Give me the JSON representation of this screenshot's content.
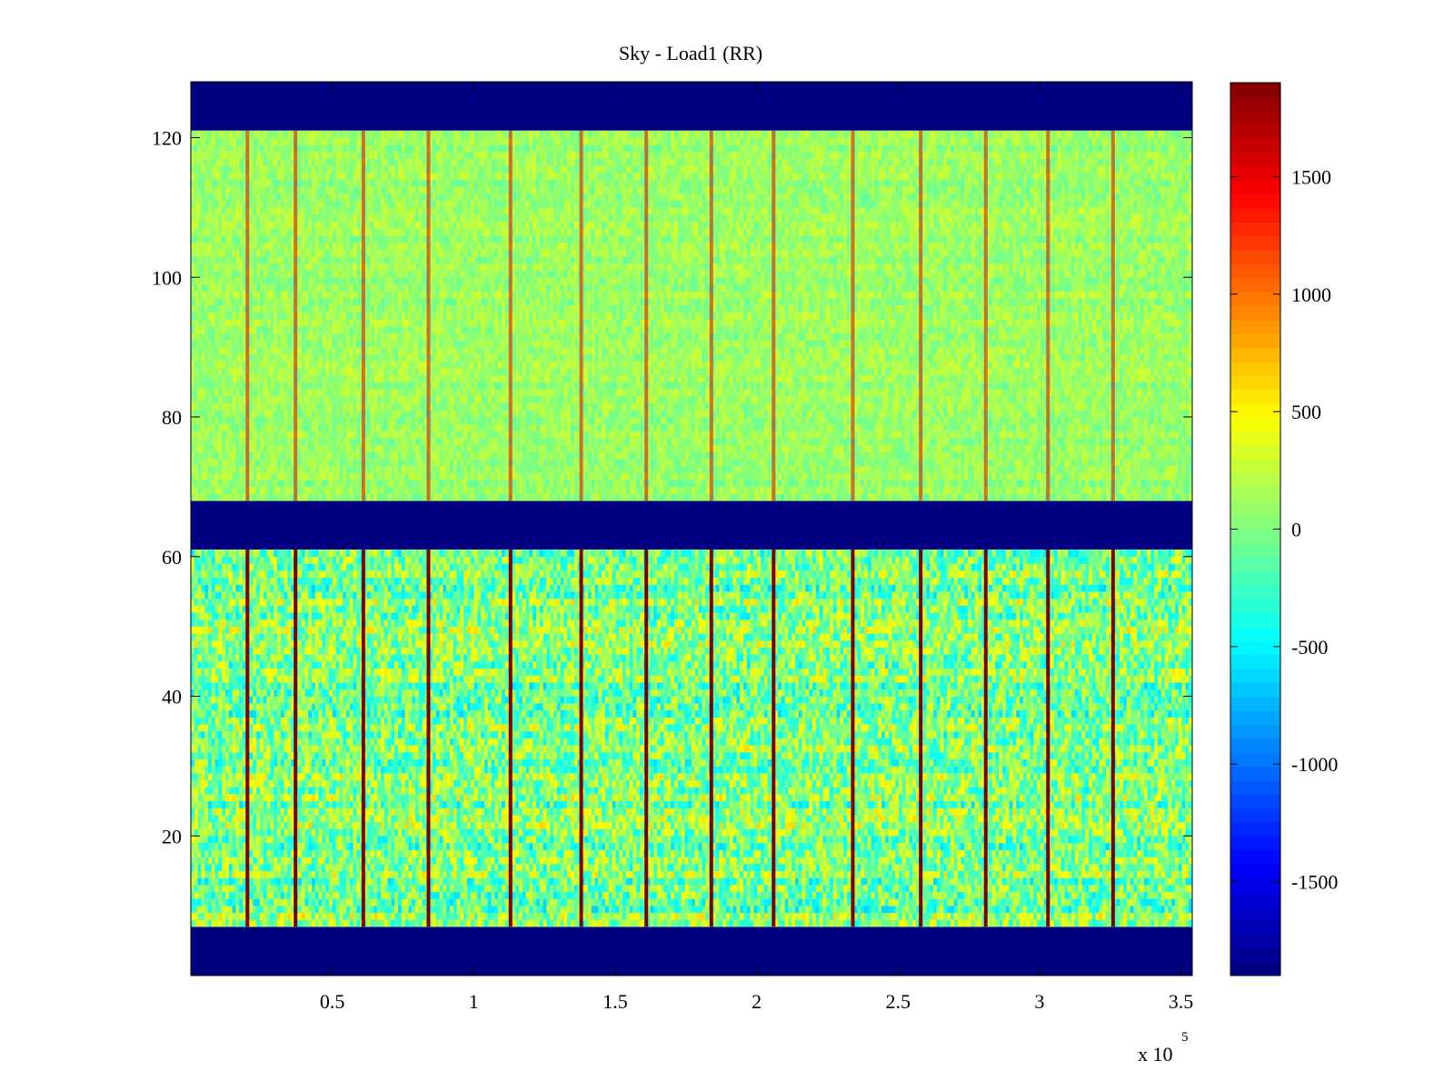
{
  "chart_data": {
    "type": "heatmap",
    "title": "Sky - Load1 (RR)",
    "xlabel": "",
    "ylabel": "",
    "x_range": [
      0,
      354000
    ],
    "y_range": [
      0,
      128
    ],
    "x_ticks": [
      {
        "value": 50000,
        "label": "0.5"
      },
      {
        "value": 100000,
        "label": "1"
      },
      {
        "value": 150000,
        "label": "1.5"
      },
      {
        "value": 200000,
        "label": "2"
      },
      {
        "value": 250000,
        "label": "2.5"
      },
      {
        "value": 300000,
        "label": "3"
      },
      {
        "value": 350000,
        "label": "3.5"
      }
    ],
    "x_exponent": {
      "base": "x 10",
      "power": "5"
    },
    "y_ticks": [
      {
        "value": 20,
        "label": "20"
      },
      {
        "value": 40,
        "label": "40"
      },
      {
        "value": 60,
        "label": "60"
      },
      {
        "value": 80,
        "label": "80"
      },
      {
        "value": 100,
        "label": "100"
      },
      {
        "value": 120,
        "label": "120"
      }
    ],
    "colorbar": {
      "colormap": "jet",
      "range": [
        -1900,
        1900
      ],
      "ticks": [
        {
          "value": 1500,
          "label": "1500"
        },
        {
          "value": 1000,
          "label": "1000"
        },
        {
          "value": 500,
          "label": "500"
        },
        {
          "value": 0,
          "label": "0"
        },
        {
          "value": -500,
          "label": "-500"
        },
        {
          "value": -1000,
          "label": "-1000"
        },
        {
          "value": -1500,
          "label": "-1500"
        }
      ]
    },
    "masked_bands": [
      {
        "y_range": [
          0,
          7
        ],
        "value": -1900
      },
      {
        "y_range": [
          61,
          68
        ],
        "value": -1900
      },
      {
        "y_range": [
          121,
          128
        ],
        "value": -1900
      }
    ],
    "data_bands": [
      {
        "y_range": [
          7,
          61
        ],
        "base_value": 0,
        "noise": 500
      },
      {
        "y_range": [
          68,
          121
        ],
        "base_value": 100,
        "noise": 180
      }
    ],
    "spike_columns_x": [
      20000,
      37000,
      61000,
      84000,
      113000,
      138000,
      161000,
      184000,
      206000,
      234000,
      258000,
      281000,
      303000,
      326000
    ],
    "spike_value": 1900,
    "grid": false,
    "legend": "colorbar-right"
  }
}
